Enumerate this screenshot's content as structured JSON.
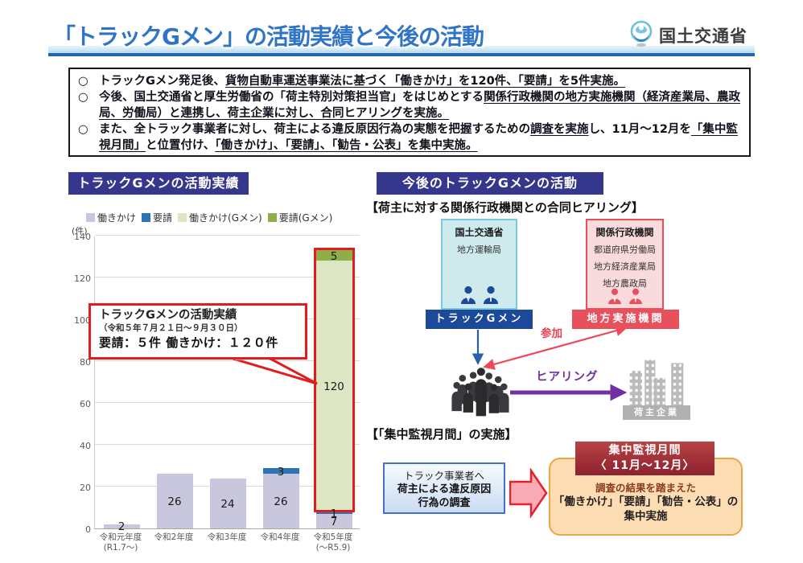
{
  "header": {
    "title": "「トラックGメン」の活動実績と今後の活動",
    "logo_text": "国土交通省"
  },
  "summary": {
    "bullets": [
      {
        "segments": [
          {
            "t": "トラックGメン発足後、",
            "u": false
          },
          {
            "t": "貨物自動車運送事業法に基づく「働きかけ」を120件、「要請」を5件実施。",
            "u": true
          }
        ]
      },
      {
        "segments": [
          {
            "t": "今後、国土交通省と厚生労働省の「荷主特別対策担当官」をはじめとする",
            "u": false
          },
          {
            "t": "関係行政機関の地方実施機関（経済産業局、農政局、労働局）と連携し、荷主企業に対し、合同ヒアリングを実施。",
            "u": true
          }
        ]
      },
      {
        "segments": [
          {
            "t": "また、全トラック事業者に対し、荷主による違反原因行為の実態を把握するための",
            "u": false
          },
          {
            "t": "調査を実施",
            "u": true
          },
          {
            "t": "し、11月～12月を",
            "u": false
          },
          {
            "t": "「集中監視月間」",
            "u": true
          },
          {
            "t": "と位置付け、",
            "u": false
          },
          {
            "t": "「働きかけ」、「要請」、「勧告・公表」を集中実施。",
            "u": true
          }
        ]
      }
    ]
  },
  "left_panel": {
    "header": "トラックGメンの活動実績",
    "unit_label": "(件)",
    "annotation": {
      "line1": "トラックGメンの活動実績",
      "line2": "（令和５年７月２１日～９月３０日）",
      "line3": "要請：５件 働きかけ：１２０件"
    }
  },
  "chart_data": {
    "type": "bar",
    "stacked": true,
    "title": "トラックGメンの活動実績",
    "unit": "件",
    "categories": [
      "令和元年度\n(R1.7～)",
      "令和2年度",
      "令和3年度",
      "令和4年度",
      "令和5年度\n(～R5.9)"
    ],
    "series": [
      {
        "name": "働きかけ",
        "color": "#c9c7dd",
        "values": [
          2,
          26,
          24,
          26,
          7
        ]
      },
      {
        "name": "要請",
        "color": "#2e74b5",
        "values": [
          0,
          0,
          0,
          3,
          1
        ]
      },
      {
        "name": "働きかけ(Gメン)",
        "color": "#dce6c3",
        "values": [
          0,
          0,
          0,
          0,
          120
        ]
      },
      {
        "name": "要請(Gメン)",
        "color": "#8fae49",
        "values": [
          0,
          0,
          0,
          0,
          5
        ]
      }
    ],
    "ylim": [
      0,
      140
    ],
    "ytick_step": 20,
    "grid": true,
    "legend_position": "top",
    "highlight": {
      "category": 4,
      "series": [
        2,
        3
      ],
      "color": "#df1f1f"
    }
  },
  "right_panel": {
    "header": "今後のトラックGメンの活動",
    "hearing_title": "【荷主に対する関係行政機関との合同ヒアリング】",
    "mlit_box": {
      "title": "国土交通省",
      "sub": "地方運輸局",
      "label": "トラックGメン"
    },
    "kankei_box": {
      "title": "関係行政機関",
      "items": [
        "都道府県労働局",
        "地方経済産業局",
        "地方農政局"
      ],
      "label": "地方実施機関"
    },
    "sanka_label": "参加",
    "hearing_label": "ヒアリング",
    "ninushi_label": "荷主企業",
    "monitoring_title": "【「集中監視月間」の実施】",
    "survey_box": {
      "line1": "トラック事業者へ",
      "line2": "荷主による違反原因",
      "line3": "行為の調査"
    },
    "period_box": {
      "line1": "集中監視月間",
      "line2": "〈 11月～12月〉"
    },
    "result_box": {
      "line1": "調査の結果を踏まえた",
      "line2": "「働きかけ」「要請」「勧告・公表」の",
      "line3": "集中実施"
    }
  },
  "colors": {
    "title_blue": "#2f74c6",
    "band_blue": "#b7dbee",
    "rule_blue": "#2166ae",
    "section_indigo": "#34378c",
    "gmen_blue": "#1b4a9b",
    "jisshi_red": "#e8515c",
    "hearing_purple": "#7030a0",
    "callout_red": "#df1f1f",
    "period_dark_red": "#8e2230",
    "result_orange_bg": "#fcdcb2",
    "result_orange_border": "#eda647",
    "survey_blue_border": "#4472c4",
    "building_gray": "#b9babc"
  }
}
